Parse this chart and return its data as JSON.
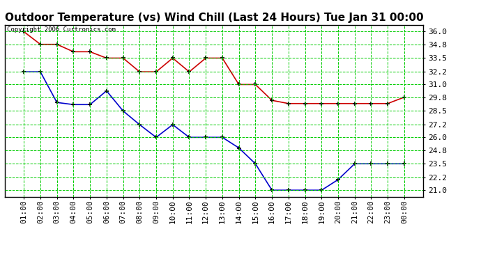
{
  "title": "Outdoor Temperature (vs) Wind Chill (Last 24 Hours) Tue Jan 31 00:00",
  "copyright": "Copyright 2006 Curtronics.com",
  "x_labels": [
    "01:00",
    "02:00",
    "03:00",
    "04:00",
    "05:00",
    "06:00",
    "07:00",
    "08:00",
    "09:00",
    "10:00",
    "11:00",
    "12:00",
    "13:00",
    "14:00",
    "15:00",
    "16:00",
    "17:00",
    "18:00",
    "19:00",
    "20:00",
    "21:00",
    "22:00",
    "23:00",
    "00:00"
  ],
  "red_temp": [
    36.0,
    34.8,
    34.8,
    34.1,
    34.1,
    33.5,
    33.5,
    32.2,
    32.2,
    33.5,
    32.2,
    33.5,
    33.5,
    31.0,
    31.0,
    29.5,
    29.2,
    29.2,
    29.2,
    29.2,
    29.2,
    29.2,
    29.2,
    29.8
  ],
  "blue_wc": [
    32.2,
    32.2,
    29.3,
    29.1,
    29.1,
    30.4,
    28.5,
    27.2,
    26.0,
    27.2,
    26.0,
    26.0,
    26.0,
    25.0,
    23.5,
    21.0,
    21.0,
    21.0,
    21.0,
    22.0,
    23.5,
    23.5,
    23.5,
    23.5
  ],
  "ylim_min": 20.35,
  "ylim_max": 36.65,
  "yticks": [
    21.0,
    22.2,
    23.5,
    24.8,
    26.0,
    27.2,
    28.5,
    29.8,
    31.0,
    32.2,
    33.5,
    34.8,
    36.0
  ],
  "red_color": "#cc0000",
  "blue_color": "#0000cc",
  "grid_color": "#00cc00",
  "bg_color": "#ffffff",
  "title_fontsize": 11,
  "axis_fontsize": 8,
  "copyright_fontsize": 6.5
}
